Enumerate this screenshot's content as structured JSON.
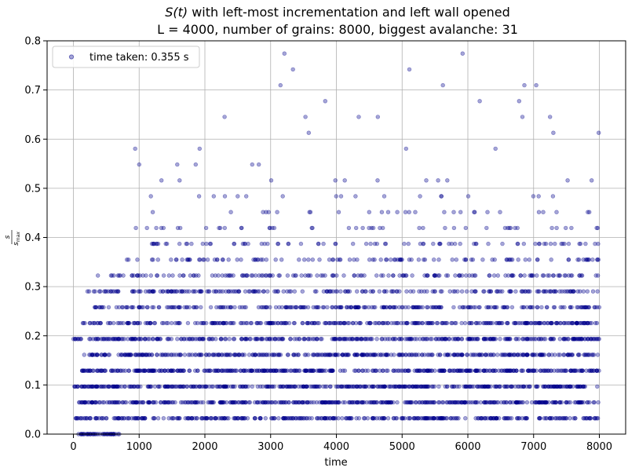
{
  "chart_data": {
    "type": "scatter",
    "title_func": "S(t)",
    "title_rest": " with left-most incrementation and left wall opened",
    "subtitle": "L = 4000, number of grains: 8000, biggest avalanche: 31",
    "xlabel": "time",
    "ylabel": "s / s_max",
    "ylabel_num": "s",
    "ylabel_den": "s",
    "ylabel_den_sub": "max",
    "xlim": [
      -400,
      8400
    ],
    "ylim": [
      0,
      0.8
    ],
    "x_ticks": [
      0,
      1000,
      2000,
      3000,
      4000,
      5000,
      6000,
      7000,
      8000
    ],
    "x_tick_labels": [
      "0",
      "1000",
      "2000",
      "3000",
      "4000",
      "5000",
      "6000",
      "7000",
      "8000"
    ],
    "y_ticks": [
      0.0,
      0.1,
      0.2,
      0.3,
      0.4,
      0.5,
      0.6,
      0.7,
      0.8
    ],
    "y_tick_labels": [
      "0.0",
      "0.1",
      "0.2",
      "0.3",
      "0.4",
      "0.5",
      "0.6",
      "0.7",
      "0.8"
    ],
    "grid": true,
    "legend": {
      "label": "time taken: 0.355 s",
      "position": "top-left"
    },
    "series": [
      {
        "name": "time taken: 0.355 s",
        "color": "#00008b",
        "alpha": 0.35,
        "n_points": 8000,
        "max_avalanche": 31,
        "levels": [
          0,
          0.0323,
          0.0645,
          0.0968,
          0.129,
          0.1613,
          0.1935,
          0.2258,
          0.2581,
          0.2903,
          0.3226,
          0.3548,
          0.3871,
          0.4194,
          0.4516,
          0.4839,
          0.5161,
          0.5484,
          0.5806,
          0.6129,
          0.6452,
          0.6774,
          0.7097,
          0.7419,
          0.7742
        ],
        "outliers": [
          {
            "x": 940,
            "y": 0.5806
          },
          {
            "x": 1000,
            "y": 0.5484
          },
          {
            "x": 1340,
            "y": 0.5161
          },
          {
            "x": 1580,
            "y": 0.5484
          },
          {
            "x": 1860,
            "y": 0.5484
          },
          {
            "x": 1920,
            "y": 0.5806
          },
          {
            "x": 2300,
            "y": 0.6452
          },
          {
            "x": 2720,
            "y": 0.5484
          },
          {
            "x": 2820,
            "y": 0.5484
          },
          {
            "x": 3150,
            "y": 0.7097
          },
          {
            "x": 3210,
            "y": 0.7742
          },
          {
            "x": 3340,
            "y": 0.7419
          },
          {
            "x": 3530,
            "y": 0.6452
          },
          {
            "x": 3580,
            "y": 0.6129
          },
          {
            "x": 3830,
            "y": 0.6774
          },
          {
            "x": 4340,
            "y": 0.6452
          },
          {
            "x": 4630,
            "y": 0.6452
          },
          {
            "x": 5110,
            "y": 0.7419
          },
          {
            "x": 5620,
            "y": 0.7097
          },
          {
            "x": 5920,
            "y": 0.7742
          },
          {
            "x": 6180,
            "y": 0.6774
          },
          {
            "x": 6780,
            "y": 0.6774
          },
          {
            "x": 6830,
            "y": 0.6452
          },
          {
            "x": 6860,
            "y": 0.7097
          },
          {
            "x": 7040,
            "y": 0.7097
          },
          {
            "x": 7250,
            "y": 0.6452
          },
          {
            "x": 7300,
            "y": 0.6129
          },
          {
            "x": 7990,
            "y": 0.6129
          },
          {
            "x": 5060,
            "y": 0.5806
          },
          {
            "x": 6420,
            "y": 0.5806
          }
        ]
      }
    ]
  }
}
